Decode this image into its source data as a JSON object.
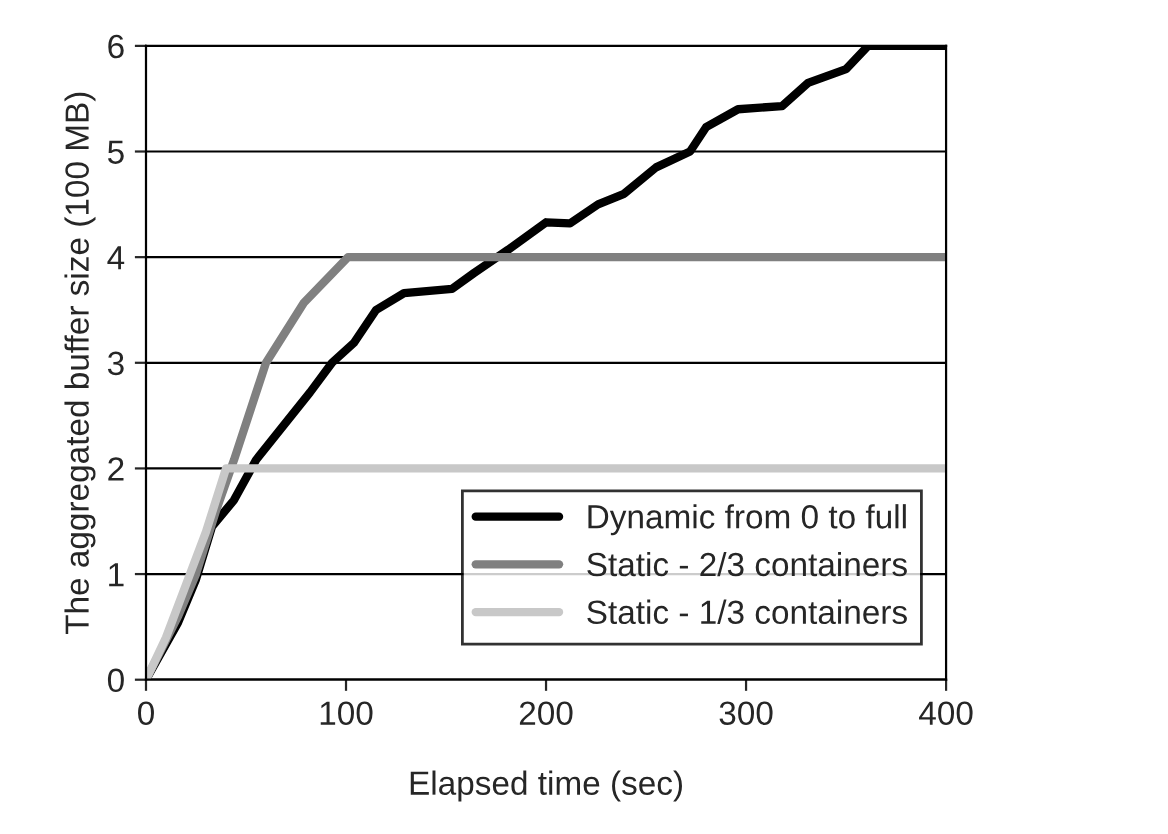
{
  "chart_data": {
    "type": "line",
    "xlabel": "Elapsed time (sec)",
    "ylabel": "The aggregated buffer size (100 MB)",
    "xlim": [
      0,
      400
    ],
    "xticks": [
      0,
      100,
      200,
      300,
      400
    ],
    "ylim": [
      0,
      6
    ],
    "yticks": [
      0,
      1,
      2,
      3,
      4,
      5,
      6
    ],
    "grid": "y",
    "legend": "lower right",
    "marker": "none",
    "line_style": "solid",
    "series": [
      {
        "name": "Dynamic from 0 to full",
        "color": "#000000",
        "x": [
          0,
          16,
          25,
          33,
          44,
          55,
          71,
          82,
          93,
          104,
          115,
          129,
          153,
          164,
          181,
          200,
          212,
          226,
          239,
          255,
          272,
          280,
          296,
          318,
          331,
          350,
          361,
          400
        ],
        "values": [
          0,
          0.54,
          0.95,
          1.45,
          1.7,
          2.08,
          2.46,
          2.72,
          3.0,
          3.19,
          3.5,
          3.66,
          3.7,
          3.85,
          4.07,
          4.33,
          4.32,
          4.5,
          4.6,
          4.85,
          5.0,
          5.23,
          5.4,
          5.43,
          5.65,
          5.78,
          6.0,
          6.0
        ]
      },
      {
        "name": "Static - 2/3 containers",
        "color": "#808080",
        "x": [
          0,
          16,
          25,
          35,
          44,
          60,
          79,
          101,
          400
        ],
        "values": [
          0,
          0.6,
          1.0,
          1.6,
          2.08,
          3.0,
          3.57,
          4.0,
          4.0
        ]
      },
      {
        "name": "Static - 1/3 containers",
        "color": "#c8c8c8",
        "x": [
          0,
          10,
          20,
          30,
          40,
          400
        ],
        "values": [
          0,
          0.4,
          0.9,
          1.4,
          2.0,
          2.0
        ]
      }
    ]
  }
}
